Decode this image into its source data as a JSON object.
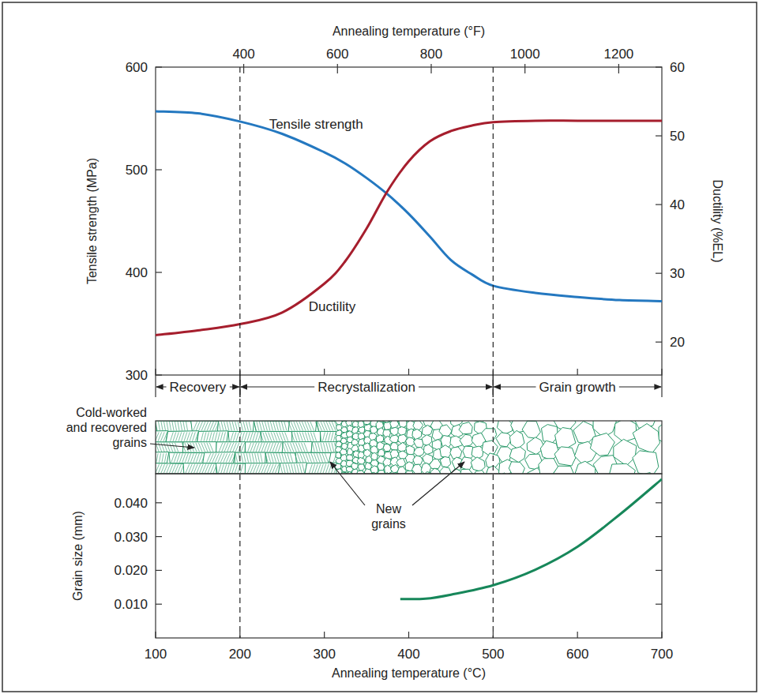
{
  "chart_data": [
    {
      "type": "line",
      "xlim": [
        100,
        700
      ],
      "x2lim": [
        212,
        1292
      ],
      "x2ticks": [
        400,
        600,
        800,
        1000,
        1200
      ],
      "x2_label": "Annealing temperature (°F)",
      "ylim": [
        300,
        600
      ],
      "yticks": [
        300,
        400,
        500,
        600
      ],
      "y_label": "Tensile strength (MPa)",
      "y2lim": [
        15.2,
        60
      ],
      "y2ticks": [
        20,
        30,
        40,
        50,
        60
      ],
      "y2_label": "Ductility (%EL)",
      "x": [
        100,
        150,
        200,
        250,
        300,
        325,
        350,
        375,
        400,
        425,
        450,
        475,
        500,
        550,
        600,
        650,
        700
      ],
      "series": [
        {
          "name": "Tensile strength",
          "color": "#2478c0",
          "values": [
            557,
            555,
            547,
            535,
            517,
            506,
            492,
            476,
            457,
            435,
            412,
            398,
            387,
            380,
            376,
            373,
            372
          ]
        },
        {
          "name": "Ductility",
          "color": "#a61e2d",
          "axis": "y2",
          "values": [
            21.0,
            21.7,
            22.6,
            24.3,
            28.5,
            31.8,
            36.5,
            42.0,
            46.3,
            49.2,
            50.7,
            51.5,
            52.0,
            52.2,
            52.2,
            52.2,
            52.2
          ]
        }
      ],
      "regions": [
        {
          "label": "Recovery",
          "start": 100,
          "end": 200
        },
        {
          "label": "Recrystallization",
          "start": 200,
          "end": 500
        },
        {
          "label": "Grain growth",
          "start": 500,
          "end": 700
        }
      ]
    },
    {
      "type": "line",
      "xlim": [
        100,
        700
      ],
      "xticks": [
        100,
        200,
        300,
        400,
        500,
        600,
        700
      ],
      "x_label": "Annealing temperature (°C)",
      "ylim": [
        0,
        0.0486
      ],
      "yticks": [
        {
          "value": 0.01,
          "label": "0.010"
        },
        {
          "value": 0.02,
          "label": "0.020"
        },
        {
          "value": 0.03,
          "label": "0.030"
        },
        {
          "value": 0.04,
          "label": "0.040"
        }
      ],
      "y_label": "Grain size (mm)",
      "x": [
        390,
        420,
        450,
        500,
        550,
        600,
        650,
        700
      ],
      "series": [
        {
          "color": "#17875a",
          "values": [
            0.0115,
            0.0116,
            0.0128,
            0.0156,
            0.0202,
            0.027,
            0.0365,
            0.047
          ]
        }
      ]
    }
  ],
  "microstructure": {
    "labels": [
      "Cold-worked and recovered grains",
      "New grains"
    ],
    "color": "#2a9a6a"
  }
}
